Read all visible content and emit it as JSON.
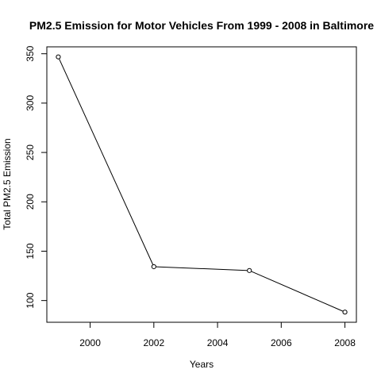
{
  "colors": {
    "background": "#ffffff",
    "line": "#000000",
    "text": "#000000"
  },
  "chart_data": {
    "type": "line",
    "title": "PM2.5 Emission for Motor Vehicles From 1999 - 2008 in Baltimore",
    "xlabel": "Years",
    "ylabel": "Total PM2.5 Emission",
    "x": [
      1999,
      2002,
      2005,
      2008
    ],
    "series": [
      {
        "values": [
          346.8,
          134.3,
          130.4,
          88.3
        ]
      }
    ],
    "x_ticks": [
      "2000",
      "2002",
      "2004",
      "2006",
      "2008"
    ],
    "y_ticks": [
      "100",
      "150",
      "200",
      "250",
      "300",
      "350"
    ],
    "xlim": [
      1998.64,
      2008.36
    ],
    "ylim": [
      78.0,
      357.0
    ],
    "grid": false,
    "legend": "none",
    "markers": "open-circle"
  }
}
